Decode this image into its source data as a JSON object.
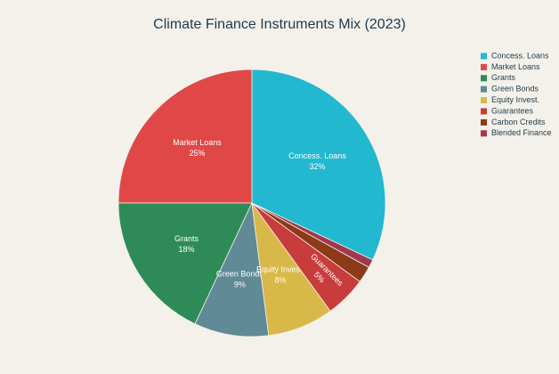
{
  "chart_data": {
    "type": "pie",
    "title": "Climate Finance Instruments Mix (2023)",
    "categories": [
      "Concess. Loans",
      "Market Loans",
      "Grants",
      "Green Bonds",
      "Equity Invest.",
      "Guarantees",
      "Carbon Credits",
      "Blended Finance"
    ],
    "values": [
      32,
      25,
      18,
      9,
      8,
      5,
      2,
      1
    ],
    "value_labels": [
      "32%",
      "25%",
      "18%",
      "9%",
      "8%",
      "5%",
      null,
      null
    ],
    "colors": [
      "#22b8cf",
      "#e04848",
      "#2e8b57",
      "#5f8a96",
      "#d9b84a",
      "#c83c3c",
      "#8b3a1a",
      "#a0394f"
    ],
    "legend": "right"
  }
}
